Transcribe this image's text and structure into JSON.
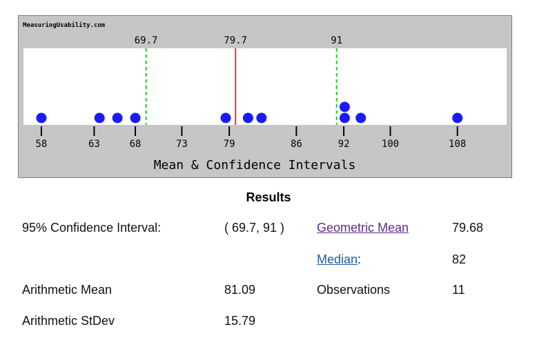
{
  "chart_data": {
    "type": "dot",
    "site_label": "MeasuringUsability.com",
    "title": "Mean & Confidence Intervals",
    "xlim": [
      56,
      110
    ],
    "ticks": [
      58,
      63,
      68,
      73,
      79,
      86,
      92,
      100,
      108
    ],
    "tick_labels": [
      "58",
      "63",
      "68",
      "73",
      "79",
      "86",
      "92",
      "100",
      "108"
    ],
    "tick_x": [
      58,
      63.9,
      68.5,
      73.7,
      79,
      86.5,
      91.8,
      97.0,
      104.5
    ],
    "mean": 79.7,
    "mean_label": "79.7",
    "ci_lower": 69.7,
    "ci_lower_label": "69.7",
    "ci_upper": 91,
    "ci_upper_label": "91",
    "points": [
      {
        "x": 58,
        "level": 0
      },
      {
        "x": 64.5,
        "level": 0
      },
      {
        "x": 66.5,
        "level": 0
      },
      {
        "x": 68.5,
        "level": 0
      },
      {
        "x": 78.6,
        "level": 0
      },
      {
        "x": 81.1,
        "level": 0
      },
      {
        "x": 82.6,
        "level": 0
      },
      {
        "x": 91.9,
        "level": 0
      },
      {
        "x": 91.9,
        "level": 1
      },
      {
        "x": 93.7,
        "level": 0
      },
      {
        "x": 104.5,
        "level": 0
      }
    ],
    "colors": {
      "frame": "#c6c6c6",
      "plot": "#ffffff",
      "mean_line": "#e8323c",
      "ci_line": "#22cc22",
      "point": "#1a1aff"
    }
  },
  "results": {
    "title": "Results",
    "ci_label": "95% Confidence Interval:",
    "ci_value": "( 69.7, 91 )",
    "geomean_label": "Geometric Mean",
    "geomean_value": "79.68",
    "median_label": "Median",
    "median_suffix": ":",
    "median_value": "82",
    "amean_label": "Arithmetic Mean",
    "amean_value": "81.09",
    "obs_label": "Observations",
    "obs_value": "11",
    "stdev_label": "Arithmetic StDev",
    "stdev_value": "15.79",
    "link_colors": {
      "geomean": "#5b2a86",
      "median": "#1f5c99"
    }
  }
}
